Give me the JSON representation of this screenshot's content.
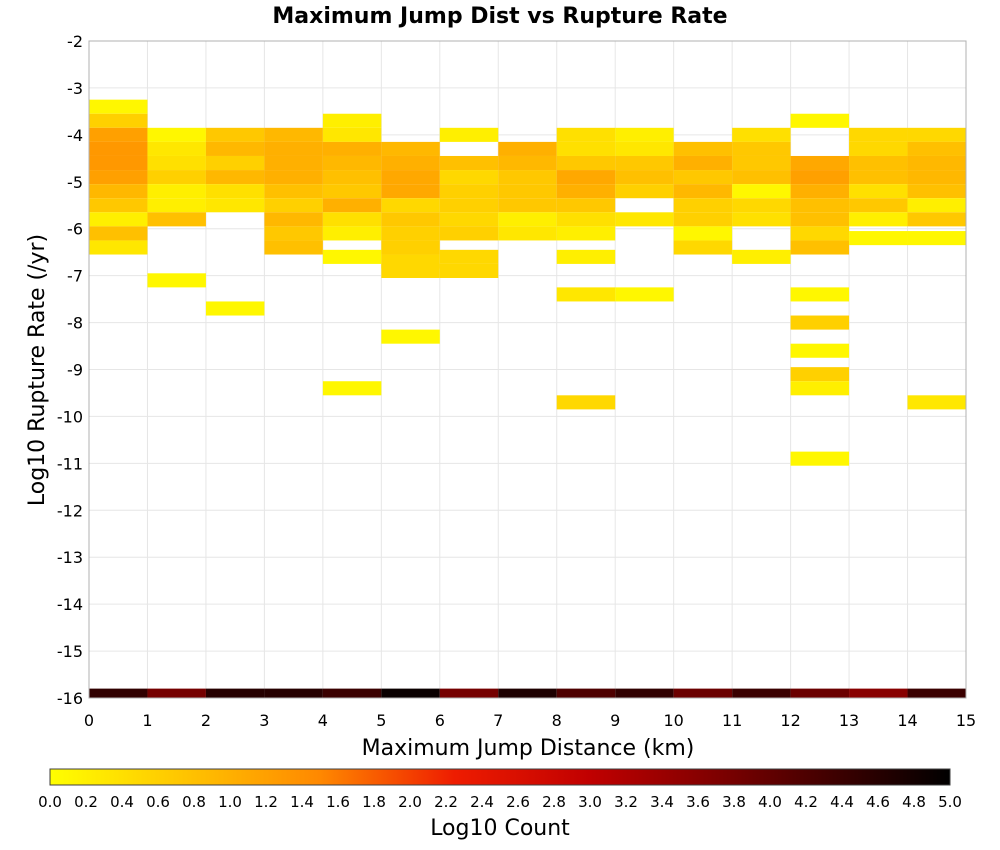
{
  "chart_data": {
    "type": "heatmap",
    "title": "Maximum Jump Dist vs Rupture Rate",
    "xlabel": "Maximum Jump Distance (km)",
    "ylabel": "Log10 Rupture Rate (/yr)",
    "xlim": [
      0,
      15
    ],
    "ylim": [
      -16,
      -2
    ],
    "x_ticks": [
      "0",
      "1",
      "2",
      "3",
      "4",
      "5",
      "6",
      "7",
      "8",
      "9",
      "10",
      "11",
      "12",
      "13",
      "14",
      "15"
    ],
    "y_ticks": [
      "-2",
      "-3",
      "-4",
      "-5",
      "-6",
      "-7",
      "-8",
      "-9",
      "-10",
      "-11",
      "-12",
      "-13",
      "-14",
      "-15",
      "-16"
    ],
    "colorbar": {
      "label": "Log10 Count",
      "range": [
        0.0,
        5.0
      ],
      "ticks": [
        "0.0",
        "0.2",
        "0.4",
        "0.6",
        "0.8",
        "1.0",
        "1.2",
        "1.4",
        "1.6",
        "1.8",
        "2.0",
        "2.2",
        "2.4",
        "2.6",
        "2.8",
        "3.0",
        "3.2",
        "3.4",
        "3.6",
        "3.8",
        "4.0",
        "4.2",
        "4.4",
        "4.6",
        "4.8",
        "5.0"
      ],
      "colors": [
        "#ffff00",
        "#ffa000",
        "#ff4000",
        "#e00000",
        "#900000",
        "#300000",
        "#000000"
      ]
    },
    "x_bin_width": 1,
    "y_bin_height": 0.3,
    "cells": [
      {
        "x": 0,
        "y": -3.4,
        "v": 0.1
      },
      {
        "x": 0,
        "y": -3.7,
        "v": 0.6
      },
      {
        "x": 0,
        "y": -4.0,
        "v": 1.2
      },
      {
        "x": 0,
        "y": -4.3,
        "v": 1.3
      },
      {
        "x": 0,
        "y": -4.6,
        "v": 1.3
      },
      {
        "x": 0,
        "y": -4.9,
        "v": 1.2
      },
      {
        "x": 0,
        "y": -5.2,
        "v": 0.9
      },
      {
        "x": 0,
        "y": -5.5,
        "v": 0.7
      },
      {
        "x": 0,
        "y": -5.8,
        "v": 0.2
      },
      {
        "x": 0,
        "y": -6.1,
        "v": 0.8
      },
      {
        "x": 0,
        "y": -6.4,
        "v": 0.3
      },
      {
        "x": 1,
        "y": -4.0,
        "v": 0.1
      },
      {
        "x": 1,
        "y": -4.3,
        "v": 0.3
      },
      {
        "x": 1,
        "y": -4.6,
        "v": 0.4
      },
      {
        "x": 1,
        "y": -4.9,
        "v": 0.6
      },
      {
        "x": 1,
        "y": -5.2,
        "v": 0.2
      },
      {
        "x": 1,
        "y": -5.5,
        "v": 0.2
      },
      {
        "x": 1,
        "y": -5.8,
        "v": 0.8
      },
      {
        "x": 1,
        "y": -7.1,
        "v": 0.1
      },
      {
        "x": 2,
        "y": -4.0,
        "v": 0.7
      },
      {
        "x": 2,
        "y": -4.3,
        "v": 0.9
      },
      {
        "x": 2,
        "y": -4.6,
        "v": 0.6
      },
      {
        "x": 2,
        "y": -4.9,
        "v": 0.9
      },
      {
        "x": 2,
        "y": -5.2,
        "v": 0.4
      },
      {
        "x": 2,
        "y": -5.5,
        "v": 0.3
      },
      {
        "x": 2,
        "y": -7.7,
        "v": 0.1
      },
      {
        "x": 3,
        "y": -4.0,
        "v": 0.9
      },
      {
        "x": 3,
        "y": -4.3,
        "v": 1.0
      },
      {
        "x": 3,
        "y": -4.6,
        "v": 1.0
      },
      {
        "x": 3,
        "y": -4.9,
        "v": 1.0
      },
      {
        "x": 3,
        "y": -5.2,
        "v": 0.8
      },
      {
        "x": 3,
        "y": -5.5,
        "v": 0.6
      },
      {
        "x": 3,
        "y": -5.8,
        "v": 0.9
      },
      {
        "x": 3,
        "y": -6.1,
        "v": 0.7
      },
      {
        "x": 3,
        "y": -6.4,
        "v": 0.8
      },
      {
        "x": 4,
        "y": -3.7,
        "v": 0.2
      },
      {
        "x": 4,
        "y": -4.0,
        "v": 0.3
      },
      {
        "x": 4,
        "y": -4.3,
        "v": 1.0
      },
      {
        "x": 4,
        "y": -4.6,
        "v": 0.9
      },
      {
        "x": 4,
        "y": -4.9,
        "v": 0.8
      },
      {
        "x": 4,
        "y": -5.2,
        "v": 0.7
      },
      {
        "x": 4,
        "y": -5.5,
        "v": 1.0
      },
      {
        "x": 4,
        "y": -5.8,
        "v": 0.4
      },
      {
        "x": 4,
        "y": -6.1,
        "v": 0.2
      },
      {
        "x": 4,
        "y": -6.6,
        "v": 0.1
      },
      {
        "x": 4,
        "y": -9.4,
        "v": 0.1
      },
      {
        "x": 5,
        "y": -4.3,
        "v": 0.9
      },
      {
        "x": 5,
        "y": -4.6,
        "v": 1.0
      },
      {
        "x": 5,
        "y": -4.9,
        "v": 1.1
      },
      {
        "x": 5,
        "y": -5.2,
        "v": 1.1
      },
      {
        "x": 5,
        "y": -5.5,
        "v": 0.5
      },
      {
        "x": 5,
        "y": -5.8,
        "v": 0.7
      },
      {
        "x": 5,
        "y": -6.1,
        "v": 0.6
      },
      {
        "x": 5,
        "y": -6.4,
        "v": 0.6
      },
      {
        "x": 5,
        "y": -6.7,
        "v": 0.5
      },
      {
        "x": 5,
        "y": -6.9,
        "v": 0.5
      },
      {
        "x": 5,
        "y": -8.3,
        "v": 0.1
      },
      {
        "x": 6,
        "y": -4.0,
        "v": 0.2
      },
      {
        "x": 6,
        "y": -4.6,
        "v": 0.8
      },
      {
        "x": 6,
        "y": -4.9,
        "v": 0.5
      },
      {
        "x": 6,
        "y": -5.2,
        "v": 0.6
      },
      {
        "x": 6,
        "y": -5.5,
        "v": 0.6
      },
      {
        "x": 6,
        "y": -5.8,
        "v": 0.5
      },
      {
        "x": 6,
        "y": -6.1,
        "v": 0.6
      },
      {
        "x": 6,
        "y": -6.6,
        "v": 0.5
      },
      {
        "x": 6,
        "y": -6.9,
        "v": 0.5
      },
      {
        "x": 7,
        "y": -4.3,
        "v": 1.0
      },
      {
        "x": 7,
        "y": -4.6,
        "v": 0.9
      },
      {
        "x": 7,
        "y": -4.9,
        "v": 0.7
      },
      {
        "x": 7,
        "y": -5.2,
        "v": 0.7
      },
      {
        "x": 7,
        "y": -5.5,
        "v": 0.7
      },
      {
        "x": 7,
        "y": -5.8,
        "v": 0.2
      },
      {
        "x": 7,
        "y": -6.1,
        "v": 0.3
      },
      {
        "x": 8,
        "y": -4.0,
        "v": 0.4
      },
      {
        "x": 8,
        "y": -4.3,
        "v": 0.4
      },
      {
        "x": 8,
        "y": -4.6,
        "v": 0.7
      },
      {
        "x": 8,
        "y": -4.9,
        "v": 1.1
      },
      {
        "x": 8,
        "y": -5.2,
        "v": 1.0
      },
      {
        "x": 8,
        "y": -5.5,
        "v": 0.7
      },
      {
        "x": 8,
        "y": -5.8,
        "v": 0.4
      },
      {
        "x": 8,
        "y": -6.1,
        "v": 0.2
      },
      {
        "x": 8,
        "y": -6.6,
        "v": 0.2
      },
      {
        "x": 8,
        "y": -7.4,
        "v": 0.3
      },
      {
        "x": 8,
        "y": -9.7,
        "v": 0.5
      },
      {
        "x": 9,
        "y": -4.0,
        "v": 0.2
      },
      {
        "x": 9,
        "y": -4.3,
        "v": 0.3
      },
      {
        "x": 9,
        "y": -4.6,
        "v": 0.7
      },
      {
        "x": 9,
        "y": -4.9,
        "v": 0.8
      },
      {
        "x": 9,
        "y": -5.2,
        "v": 0.6
      },
      {
        "x": 9,
        "y": -5.8,
        "v": 0.3
      },
      {
        "x": 9,
        "y": -7.4,
        "v": 0.1
      },
      {
        "x": 10,
        "y": -4.3,
        "v": 0.8
      },
      {
        "x": 10,
        "y": -4.6,
        "v": 1.0
      },
      {
        "x": 10,
        "y": -4.9,
        "v": 0.7
      },
      {
        "x": 10,
        "y": -5.2,
        "v": 0.9
      },
      {
        "x": 10,
        "y": -5.5,
        "v": 0.6
      },
      {
        "x": 10,
        "y": -5.8,
        "v": 0.6
      },
      {
        "x": 10,
        "y": -6.1,
        "v": 0.1
      },
      {
        "x": 10,
        "y": -6.4,
        "v": 0.5
      },
      {
        "x": 11,
        "y": -4.0,
        "v": 0.4
      },
      {
        "x": 11,
        "y": -4.3,
        "v": 0.7
      },
      {
        "x": 11,
        "y": -4.6,
        "v": 0.7
      },
      {
        "x": 11,
        "y": -4.9,
        "v": 0.8
      },
      {
        "x": 11,
        "y": -5.2,
        "v": 0.1
      },
      {
        "x": 11,
        "y": -5.5,
        "v": 0.5
      },
      {
        "x": 11,
        "y": -5.8,
        "v": 0.4
      },
      {
        "x": 11,
        "y": -6.6,
        "v": 0.2
      },
      {
        "x": 12,
        "y": -3.7,
        "v": 0.1
      },
      {
        "x": 12,
        "y": -4.6,
        "v": 1.1
      },
      {
        "x": 12,
        "y": -4.9,
        "v": 1.2
      },
      {
        "x": 12,
        "y": -5.2,
        "v": 1.0
      },
      {
        "x": 12,
        "y": -5.5,
        "v": 0.8
      },
      {
        "x": 12,
        "y": -5.8,
        "v": 0.8
      },
      {
        "x": 12,
        "y": -6.1,
        "v": 0.5
      },
      {
        "x": 12,
        "y": -6.4,
        "v": 0.8
      },
      {
        "x": 12,
        "y": -7.4,
        "v": 0.1
      },
      {
        "x": 12,
        "y": -8.0,
        "v": 0.6
      },
      {
        "x": 12,
        "y": -8.6,
        "v": 0.1
      },
      {
        "x": 12,
        "y": -9.1,
        "v": 0.6
      },
      {
        "x": 12,
        "y": -9.4,
        "v": 0.2
      },
      {
        "x": 12,
        "y": -10.9,
        "v": 0.1
      },
      {
        "x": 13,
        "y": -4.0,
        "v": 0.5
      },
      {
        "x": 13,
        "y": -4.3,
        "v": 0.5
      },
      {
        "x": 13,
        "y": -4.6,
        "v": 0.8
      },
      {
        "x": 13,
        "y": -4.9,
        "v": 0.8
      },
      {
        "x": 13,
        "y": -5.2,
        "v": 0.4
      },
      {
        "x": 13,
        "y": -5.5,
        "v": 0.7
      },
      {
        "x": 13,
        "y": -5.8,
        "v": 0.2
      },
      {
        "x": 13,
        "y": -6.2,
        "v": 0.1
      },
      {
        "x": 14,
        "y": -4.0,
        "v": 0.5
      },
      {
        "x": 14,
        "y": -4.3,
        "v": 0.8
      },
      {
        "x": 14,
        "y": -4.6,
        "v": 0.9
      },
      {
        "x": 14,
        "y": -4.9,
        "v": 0.9
      },
      {
        "x": 14,
        "y": -5.2,
        "v": 0.8
      },
      {
        "x": 14,
        "y": -5.5,
        "v": 0.2
      },
      {
        "x": 14,
        "y": -5.8,
        "v": 0.7
      },
      {
        "x": 14,
        "y": -6.2,
        "v": 0.1
      },
      {
        "x": 14,
        "y": -9.7,
        "v": 0.3
      }
    ],
    "bottom_row": {
      "y": -15.9,
      "values": [
        4.5,
        3.8,
        4.6,
        4.6,
        4.4,
        4.9,
        3.8,
        4.7,
        4.2,
        4.5,
        3.9,
        4.4,
        3.9,
        3.6,
        4.4
      ]
    }
  }
}
